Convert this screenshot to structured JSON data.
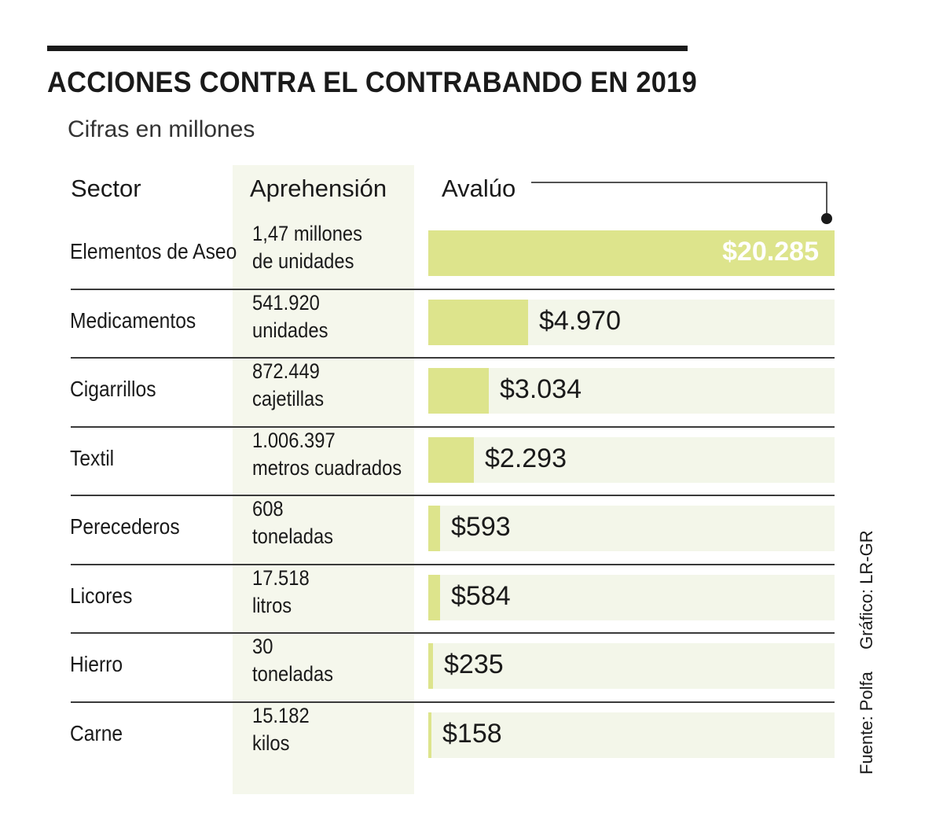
{
  "chart_data": {
    "type": "bar",
    "title": "ACCIONES CONTRA EL CONTRABANDO EN 2019",
    "subtitle": "Cifras en millones",
    "columns": {
      "sector": "Sector",
      "aprehension": "Aprehensión",
      "avaluo": "Avalúo"
    },
    "categories": [
      "Elementos de Aseo",
      "Medicamentos",
      "Cigarrillos",
      "Textil",
      "Perecederos",
      "Licores",
      "Hierro",
      "Carne"
    ],
    "values": [
      20285,
      4970,
      3034,
      2293,
      593,
      584,
      235,
      158
    ],
    "rows": [
      {
        "sector": "Elementos de Aseo",
        "aprehension": [
          "1,47 millones",
          "de unidades"
        ],
        "avaluo": 20285,
        "label": "$20.285"
      },
      {
        "sector": "Medicamentos",
        "aprehension": [
          "541.920",
          "unidades"
        ],
        "avaluo": 4970,
        "label": "$4.970"
      },
      {
        "sector": "Cigarrillos",
        "aprehension": [
          "872.449",
          "cajetillas"
        ],
        "avaluo": 3034,
        "label": "$3.034"
      },
      {
        "sector": "Textil",
        "aprehension": [
          "1.006.397",
          "metros cuadrados"
        ],
        "avaluo": 2293,
        "label": "$2.293"
      },
      {
        "sector": "Perecederos",
        "aprehension": [
          "608",
          "toneladas"
        ],
        "avaluo": 593,
        "label": "$593"
      },
      {
        "sector": "Licores",
        "aprehension": [
          "17.518",
          "litros"
        ],
        "avaluo": 584,
        "label": "$584"
      },
      {
        "sector": "Hierro",
        "aprehension": [
          "30",
          "toneladas"
        ],
        "avaluo": 235,
        "label": "$235"
      },
      {
        "sector": "Carne",
        "aprehension": [
          "15.182",
          "kilos"
        ],
        "avaluo": 158,
        "label": "$158"
      }
    ],
    "xlim": [
      0,
      20285
    ],
    "colors": {
      "bar": "#dde48c",
      "track": "#f3f6e9",
      "band": "#f5f7ec"
    }
  },
  "credits": {
    "source": "Fuente: Polfa",
    "graphic": "Gráfico: LR-GR"
  }
}
